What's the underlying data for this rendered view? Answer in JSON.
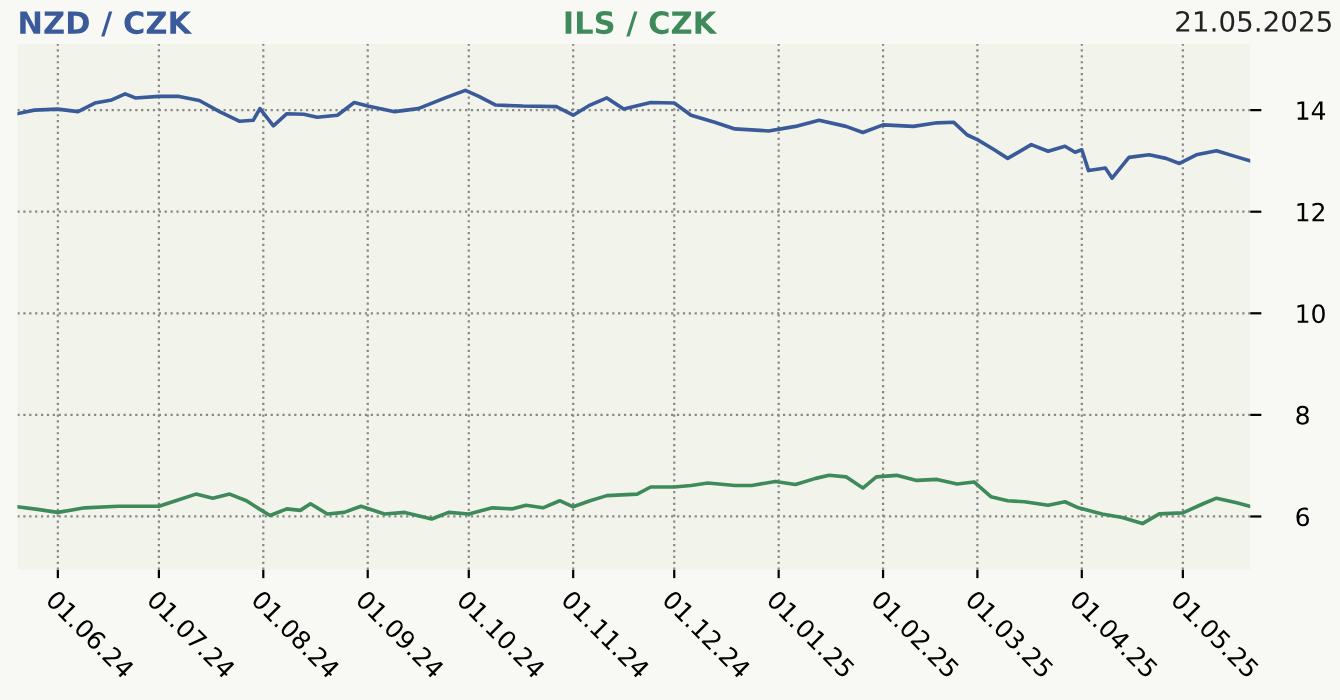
{
  "chart_data": {
    "type": "line",
    "subtitle": "21.05.2025",
    "legend": "top",
    "grid": true,
    "marker": "none",
    "line_style": "solid",
    "xlim": [
      "2024-05-20",
      "2025-05-21"
    ],
    "xticks": [
      {
        "value": "2024-06-01",
        "label": "01.06.24"
      },
      {
        "value": "2024-07-01",
        "label": "01.07.24"
      },
      {
        "value": "2024-08-01",
        "label": "01.08.24"
      },
      {
        "value": "2024-09-01",
        "label": "01.09.24"
      },
      {
        "value": "2024-10-01",
        "label": "01.10.24"
      },
      {
        "value": "2024-11-01",
        "label": "01.11.24"
      },
      {
        "value": "2024-12-01",
        "label": "01.12.24"
      },
      {
        "value": "2025-01-01",
        "label": "01.01.25"
      },
      {
        "value": "2025-02-01",
        "label": "01.02.25"
      },
      {
        "value": "2025-03-01",
        "label": "01.03.25"
      },
      {
        "value": "2025-04-01",
        "label": "01.04.25"
      },
      {
        "value": "2025-05-01",
        "label": "01.05.25"
      }
    ],
    "ylim": [
      4.95,
      15.3
    ],
    "yticks": [
      6,
      8,
      10,
      12,
      14
    ],
    "series": [
      {
        "name": "NZD / CZK",
        "color": "#3a5a9a",
        "x": [
          "2024-05-20",
          "2024-05-25",
          "2024-06-01",
          "2024-06-07",
          "2024-06-12",
          "2024-06-17",
          "2024-06-21",
          "2024-06-24",
          "2024-07-01",
          "2024-07-07",
          "2024-07-13",
          "2024-07-19",
          "2024-07-25",
          "2024-07-29",
          "2024-07-31",
          "2024-08-04",
          "2024-08-08",
          "2024-08-13",
          "2024-08-17",
          "2024-08-23",
          "2024-08-28",
          "2024-09-01",
          "2024-09-09",
          "2024-09-16",
          "2024-09-24",
          "2024-09-30",
          "2024-10-04",
          "2024-10-09",
          "2024-10-17",
          "2024-10-27",
          "2024-11-01",
          "2024-11-06",
          "2024-11-11",
          "2024-11-16",
          "2024-11-24",
          "2024-12-01",
          "2024-12-06",
          "2024-12-13",
          "2024-12-19",
          "2024-12-29",
          "2025-01-06",
          "2025-01-13",
          "2025-01-21",
          "2025-01-26",
          "2025-02-01",
          "2025-02-10",
          "2025-02-17",
          "2025-02-22",
          "2025-02-26",
          "2025-03-01",
          "2025-03-06",
          "2025-03-10",
          "2025-03-17",
          "2025-03-22",
          "2025-03-27",
          "2025-03-30",
          "2025-04-01",
          "2025-04-03",
          "2025-04-08",
          "2025-04-10",
          "2025-04-15",
          "2025-04-21",
          "2025-04-26",
          "2025-04-30",
          "2025-05-05",
          "2025-05-11",
          "2025-05-17",
          "2025-05-21"
        ],
        "values": [
          13.93,
          14.0,
          14.02,
          13.97,
          14.14,
          14.2,
          14.32,
          14.24,
          14.27,
          14.27,
          14.19,
          13.97,
          13.78,
          13.8,
          14.03,
          13.69,
          13.93,
          13.92,
          13.86,
          13.9,
          14.15,
          14.08,
          13.97,
          14.03,
          14.24,
          14.39,
          14.27,
          14.1,
          14.08,
          14.07,
          13.9,
          14.1,
          14.24,
          14.02,
          14.15,
          14.14,
          13.9,
          13.76,
          13.63,
          13.59,
          13.68,
          13.8,
          13.68,
          13.56,
          13.71,
          13.68,
          13.75,
          13.76,
          13.51,
          13.42,
          13.22,
          13.05,
          13.32,
          13.19,
          13.29,
          13.17,
          13.22,
          12.81,
          12.86,
          12.66,
          13.07,
          13.12,
          13.05,
          12.95,
          13.12,
          13.2,
          13.08,
          13.0
        ]
      },
      {
        "name": "ILS / CZK",
        "color": "#3f8a5a",
        "x": [
          "2024-05-20",
          "2024-05-26",
          "2024-06-01",
          "2024-06-09",
          "2024-06-19",
          "2024-07-01",
          "2024-07-06",
          "2024-07-12",
          "2024-07-17",
          "2024-07-22",
          "2024-07-27",
          "2024-07-31",
          "2024-08-03",
          "2024-08-08",
          "2024-08-12",
          "2024-08-15",
          "2024-08-20",
          "2024-08-25",
          "2024-08-30",
          "2024-09-06",
          "2024-09-12",
          "2024-09-20",
          "2024-09-25",
          "2024-10-01",
          "2024-10-08",
          "2024-10-14",
          "2024-10-18",
          "2024-10-23",
          "2024-10-28",
          "2024-11-01",
          "2024-11-06",
          "2024-11-11",
          "2024-11-20",
          "2024-11-24",
          "2024-12-01",
          "2024-12-06",
          "2024-12-11",
          "2024-12-19",
          "2024-12-24",
          "2024-12-31",
          "2025-01-06",
          "2025-01-12",
          "2025-01-16",
          "2025-01-21",
          "2025-01-26",
          "2025-01-30",
          "2025-02-05",
          "2025-02-11",
          "2025-02-17",
          "2025-02-23",
          "2025-02-28",
          "2025-03-05",
          "2025-03-10",
          "2025-03-15",
          "2025-03-22",
          "2025-03-27",
          "2025-03-31",
          "2025-04-07",
          "2025-04-13",
          "2025-04-19",
          "2025-04-24",
          "2025-05-01",
          "2025-05-07",
          "2025-05-11",
          "2025-05-17",
          "2025-05-21"
        ],
        "values": [
          6.19,
          6.14,
          6.08,
          6.17,
          6.2,
          6.2,
          6.31,
          6.44,
          6.36,
          6.44,
          6.31,
          6.14,
          6.02,
          6.15,
          6.12,
          6.25,
          6.05,
          6.08,
          6.2,
          6.05,
          6.08,
          5.95,
          6.08,
          6.05,
          6.17,
          6.15,
          6.22,
          6.17,
          6.31,
          6.19,
          6.31,
          6.41,
          6.44,
          6.58,
          6.58,
          6.61,
          6.66,
          6.61,
          6.61,
          6.69,
          6.63,
          6.75,
          6.81,
          6.78,
          6.56,
          6.78,
          6.81,
          6.71,
          6.73,
          6.64,
          6.68,
          6.39,
          6.31,
          6.29,
          6.22,
          6.29,
          6.17,
          6.05,
          5.98,
          5.86,
          6.05,
          6.07,
          6.25,
          6.36,
          6.27,
          6.2
        ]
      }
    ]
  }
}
